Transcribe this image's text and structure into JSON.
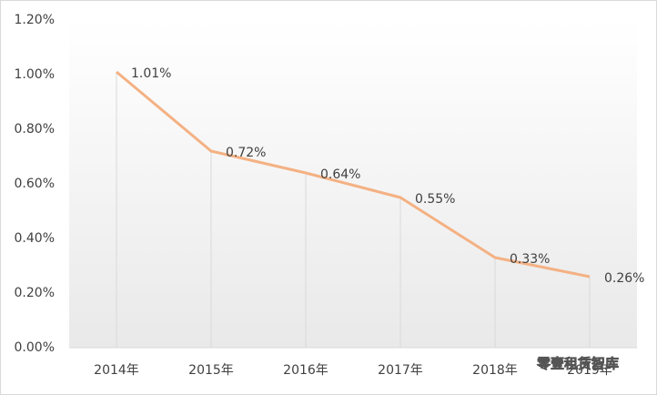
{
  "chart_data": {
    "type": "line",
    "categories": [
      "2014年",
      "2015年",
      "2016年",
      "2017年",
      "2018年",
      "2019年"
    ],
    "series": [
      {
        "color": "#f4b183",
        "values": [
          1.01,
          0.72,
          0.64,
          0.55,
          0.33,
          0.26
        ],
        "value_labels": [
          "1.01%",
          "0.72%",
          "0.64%",
          "0.55%",
          "0.33%",
          "0.26%"
        ]
      }
    ],
    "ylim": [
      0,
      1.2
    ],
    "yticks": [
      {
        "value": 0,
        "label": "0.00%"
      },
      {
        "value": 0.2,
        "label": "0.20%"
      },
      {
        "value": 0.4,
        "label": "0.40%"
      },
      {
        "value": 0.6,
        "label": "0.60%"
      },
      {
        "value": 0.8,
        "label": "0.80%"
      },
      {
        "value": 1.0,
        "label": "1.00%"
      },
      {
        "value": 1.2,
        "label": "1.20%"
      }
    ],
    "drop_lines": true,
    "watermark": "零壹租赁智库"
  }
}
